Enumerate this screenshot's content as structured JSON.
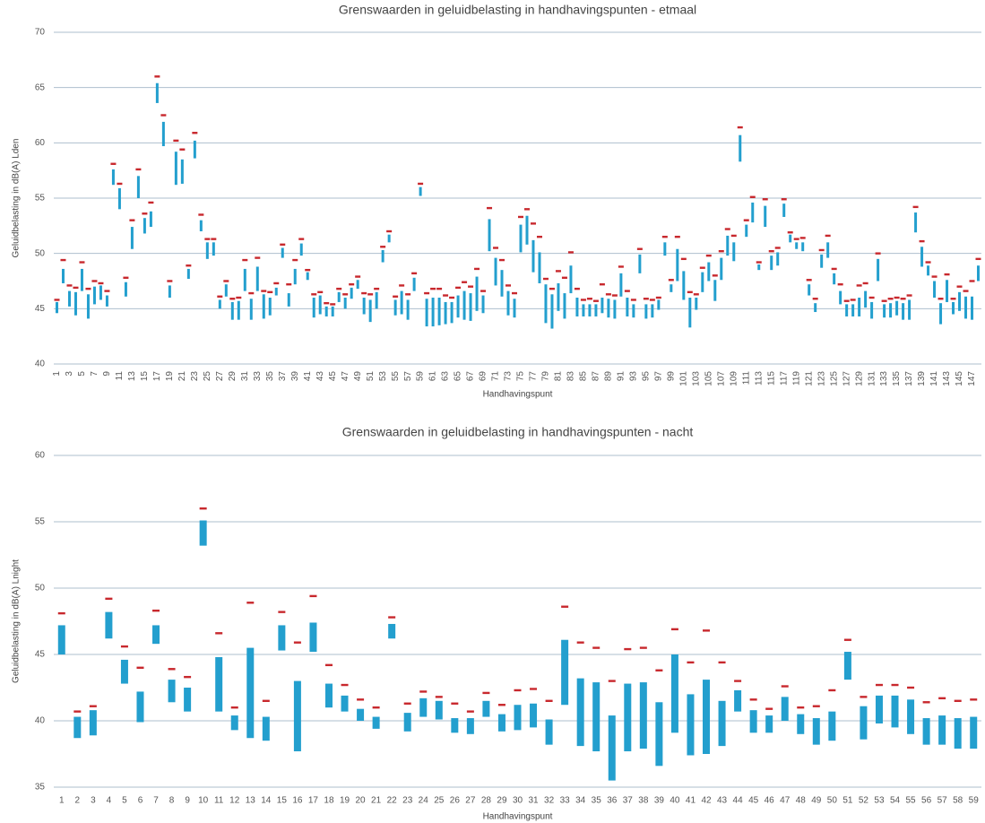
{
  "chart_data": [
    {
      "type": "range",
      "title": "Grenswaarden in geluidbelasting in handhavingspunten - etmaal",
      "x_label": "Handhavingspunt",
      "y_label": "Geluidbelasting in dB(A) Lden",
      "ylim": [
        40,
        70
      ],
      "yticks": [
        40,
        45,
        50,
        55,
        60,
        65,
        70
      ],
      "grid": true,
      "bar_color": "#239fce",
      "limit_color": "#c8282d",
      "categories": [
        1,
        null,
        3,
        null,
        5,
        null,
        7,
        null,
        9,
        null,
        11,
        null,
        13,
        null,
        15,
        null,
        17,
        null,
        19,
        null,
        21,
        null,
        23,
        null,
        25,
        null,
        27,
        null,
        29,
        null,
        31,
        null,
        33,
        null,
        35,
        null,
        37,
        null,
        39,
        null,
        41,
        null,
        43,
        null,
        45,
        null,
        47,
        null,
        49,
        null,
        51,
        null,
        53,
        null,
        55,
        null,
        57,
        null,
        59,
        null,
        61,
        null,
        63,
        null,
        65,
        null,
        67,
        null,
        69,
        null,
        71,
        null,
        73,
        null,
        75,
        null,
        77,
        null,
        79,
        null,
        81,
        null,
        83,
        null,
        85,
        null,
        87,
        null,
        89,
        null,
        91,
        null,
        93,
        null,
        95,
        null,
        97,
        null,
        99,
        null,
        101,
        null,
        103,
        null,
        105,
        null,
        107,
        null,
        109,
        null,
        111,
        null,
        113,
        null,
        115,
        null,
        117,
        null,
        119,
        null,
        121,
        null,
        123,
        null,
        125,
        null,
        127,
        null,
        129,
        null,
        131,
        null,
        133,
        null,
        135,
        null,
        137,
        null,
        139,
        null,
        141,
        null,
        143,
        null,
        145,
        null,
        147,
        null
      ],
      "limits": [
        45.8,
        49.4,
        47.1,
        46.9,
        49.2,
        46.8,
        47.5,
        47.3,
        46.6,
        58.1,
        56.3,
        47.8,
        53.0,
        57.6,
        53.6,
        54.6,
        66.0,
        62.5,
        47.5,
        60.2,
        59.4,
        48.9,
        60.9,
        53.5,
        51.3,
        51.3,
        46.1,
        47.5,
        45.9,
        46.0,
        49.4,
        46.4,
        49.6,
        46.6,
        46.5,
        47.3,
        50.8,
        47.2,
        49.4,
        51.3,
        48.5,
        46.3,
        46.5,
        45.5,
        45.4,
        46.8,
        46.3,
        47.2,
        47.9,
        46.4,
        46.3,
        46.8,
        50.6,
        52.0,
        46.1,
        47.1,
        46.3,
        48.2,
        56.3,
        46.4,
        46.8,
        46.8,
        46.2,
        46.0,
        46.9,
        47.4,
        47.0,
        48.6,
        46.6,
        54.1,
        50.5,
        49.4,
        47.1,
        46.4,
        53.3,
        54.0,
        52.7,
        51.5,
        47.7,
        46.8,
        48.4,
        47.8,
        50.1,
        46.8,
        45.8,
        45.9,
        45.7,
        47.2,
        46.3,
        46.2,
        48.8,
        46.6,
        45.8,
        50.4,
        45.9,
        45.8,
        46.0,
        51.5,
        47.6,
        51.5,
        49.5,
        46.5,
        46.3,
        48.7,
        49.8,
        48.0,
        50.2,
        52.2,
        51.6,
        61.4,
        53.0,
        55.1,
        49.2,
        54.9,
        50.2,
        50.5,
        54.9,
        51.9,
        51.3,
        51.4,
        47.6,
        45.9,
        50.3,
        51.6,
        48.6,
        47.2,
        45.7,
        45.8,
        47.1,
        47.3,
        46.0,
        50.0,
        45.7,
        45.9,
        46.0,
        45.9,
        46.2,
        54.2,
        51.1,
        49.2,
        47.9,
        45.9,
        48.1,
        45.9,
        47.0,
        46.6,
        47.5,
        49.5
      ],
      "highs": [
        45.6,
        48.6,
        46.6,
        46.5,
        48.6,
        46.3,
        47.0,
        47.1,
        46.2,
        57.6,
        55.9,
        47.4,
        52.4,
        57.0,
        53.2,
        53.8,
        65.4,
        61.9,
        47.1,
        59.2,
        58.5,
        48.6,
        60.2,
        53.0,
        51.0,
        51.0,
        45.8,
        47.2,
        45.6,
        45.7,
        48.6,
        45.9,
        48.8,
        46.3,
        46.0,
        46.9,
        50.5,
        46.4,
        48.6,
        50.9,
        48.3,
        46.0,
        46.2,
        45.2,
        45.2,
        46.5,
        46.0,
        46.9,
        47.6,
        46.0,
        45.8,
        46.5,
        50.3,
        51.7,
        45.8,
        46.6,
        45.8,
        47.8,
        56.0,
        45.9,
        46.0,
        46.0,
        45.6,
        45.6,
        46.2,
        46.6,
        46.4,
        47.9,
        46.2,
        53.1,
        49.6,
        48.5,
        46.6,
        45.9,
        52.6,
        53.4,
        51.2,
        50.1,
        47.2,
        46.3,
        47.3,
        46.4,
        48.9,
        46.0,
        45.4,
        45.4,
        45.4,
        46.0,
        45.9,
        45.8,
        48.2,
        46.0,
        45.4,
        49.9,
        45.4,
        45.4,
        45.8,
        51.0,
        47.2,
        50.4,
        48.4,
        46.0,
        46.0,
        48.3,
        49.2,
        47.6,
        49.6,
        51.6,
        51.0,
        60.7,
        52.6,
        54.6,
        49.0,
        54.3,
        49.8,
        50.1,
        54.5,
        51.7,
        51.0,
        51.0,
        47.2,
        45.5,
        49.9,
        51.0,
        48.2,
        46.6,
        45.4,
        45.4,
        46.0,
        46.6,
        45.6,
        49.5,
        45.4,
        45.5,
        45.7,
        45.5,
        45.8,
        53.7,
        50.6,
        48.9,
        47.5,
        45.5,
        47.6,
        45.6,
        46.5,
        46.1,
        46.1,
        48.9
      ],
      "lows": [
        44.6,
        47.3,
        45.2,
        44.4,
        46.6,
        44.1,
        45.4,
        45.8,
        45.2,
        56.2,
        54.0,
        46.1,
        50.4,
        55.0,
        51.8,
        52.4,
        63.6,
        59.7,
        46.0,
        56.2,
        56.3,
        47.7,
        58.6,
        52.0,
        49.5,
        49.8,
        45.0,
        46.1,
        44.0,
        44.0,
        46.6,
        44.0,
        46.6,
        44.1,
        44.4,
        46.2,
        49.6,
        45.2,
        47.2,
        49.8,
        47.6,
        44.2,
        44.5,
        44.3,
        44.3,
        45.6,
        45.0,
        45.9,
        46.8,
        44.5,
        43.8,
        45.0,
        49.2,
        51.0,
        44.4,
        44.5,
        44.0,
        46.6,
        55.2,
        43.4,
        43.4,
        43.5,
        43.6,
        43.7,
        44.2,
        44.0,
        43.9,
        44.8,
        44.6,
        50.2,
        47.1,
        46.1,
        44.4,
        44.2,
        50.1,
        50.8,
        48.3,
        47.3,
        43.7,
        43.2,
        44.8,
        44.1,
        46.4,
        44.3,
        44.3,
        44.3,
        44.3,
        44.6,
        44.2,
        44.1,
        46.1,
        44.3,
        44.2,
        48.2,
        44.1,
        44.2,
        44.9,
        49.8,
        46.5,
        47.5,
        45.8,
        43.3,
        44.9,
        46.5,
        47.5,
        45.7,
        47.6,
        49.8,
        49.3,
        58.3,
        51.5,
        52.8,
        48.5,
        52.4,
        48.5,
        48.9,
        53.3,
        51.0,
        50.4,
        50.2,
        46.2,
        44.7,
        48.7,
        49.6,
        47.2,
        45.4,
        44.3,
        44.3,
        44.3,
        45.1,
        44.1,
        47.5,
        44.2,
        44.2,
        44.4,
        44.0,
        44.0,
        51.9,
        48.8,
        48.0,
        46.0,
        43.6,
        45.6,
        44.5,
        44.8,
        44.1,
        44.0,
        47.5
      ]
    },
    {
      "type": "range",
      "title": "Grenswaarden in geluidbelasting in handhavingspunten - nacht",
      "x_label": "Handhavingspunt",
      "y_label": "Geluidbelasting in dB(A) Lnight",
      "ylim": [
        35,
        60
      ],
      "yticks": [
        35,
        40,
        45,
        50,
        55,
        60
      ],
      "grid": true,
      "bar_color": "#239fce",
      "limit_color": "#c8282d",
      "categories": [
        1,
        2,
        3,
        4,
        5,
        6,
        7,
        8,
        9,
        10,
        11,
        12,
        13,
        14,
        15,
        16,
        17,
        18,
        19,
        20,
        21,
        22,
        23,
        24,
        25,
        26,
        27,
        28,
        29,
        30,
        31,
        32,
        33,
        34,
        35,
        36,
        37,
        38,
        39,
        40,
        41,
        42,
        43,
        44,
        45,
        46,
        47,
        48,
        49,
        50,
        51,
        52,
        53,
        54,
        55,
        56,
        57,
        58,
        59
      ],
      "limits": [
        48.1,
        40.7,
        41.1,
        49.2,
        45.6,
        44.0,
        48.3,
        43.9,
        43.3,
        56.0,
        46.6,
        41.0,
        48.9,
        41.5,
        48.2,
        45.9,
        49.4,
        44.2,
        42.7,
        41.6,
        41.0,
        47.8,
        41.3,
        42.2,
        41.8,
        41.3,
        40.7,
        42.1,
        41.2,
        42.3,
        42.4,
        41.5,
        48.6,
        45.9,
        45.5,
        43.0,
        45.4,
        45.5,
        43.8,
        46.9,
        44.4,
        46.8,
        44.4,
        43.0,
        41.6,
        40.9,
        42.6,
        41.0,
        41.1,
        42.3,
        46.1,
        41.8,
        42.7,
        42.7,
        42.5,
        41.4,
        41.7,
        41.5,
        41.6
      ],
      "highs": [
        47.2,
        40.3,
        40.8,
        48.2,
        44.6,
        42.2,
        47.2,
        43.1,
        42.5,
        55.1,
        44.8,
        40.4,
        45.5,
        40.3,
        47.2,
        43.0,
        47.4,
        42.8,
        41.9,
        40.9,
        40.3,
        47.3,
        40.6,
        41.7,
        41.5,
        40.2,
        40.2,
        41.5,
        40.5,
        41.2,
        41.3,
        40.1,
        46.1,
        43.2,
        42.9,
        40.4,
        42.8,
        42.9,
        41.4,
        45.0,
        42.0,
        43.1,
        41.5,
        42.3,
        40.8,
        40.4,
        41.8,
        40.5,
        40.2,
        40.7,
        45.2,
        41.1,
        41.9,
        41.9,
        41.6,
        40.2,
        40.4,
        40.2,
        40.3
      ],
      "lows": [
        45.0,
        38.7,
        38.9,
        46.2,
        42.8,
        39.9,
        45.8,
        41.4,
        40.7,
        53.2,
        40.7,
        39.3,
        38.7,
        38.5,
        45.3,
        37.7,
        45.2,
        41.0,
        40.7,
        40.0,
        39.4,
        46.2,
        39.2,
        40.3,
        40.1,
        39.1,
        39.0,
        40.3,
        39.2,
        39.3,
        39.5,
        38.2,
        41.2,
        38.1,
        37.7,
        35.5,
        37.7,
        37.9,
        36.6,
        39.1,
        37.4,
        37.5,
        38.1,
        40.7,
        39.1,
        39.1,
        40.0,
        39.0,
        38.2,
        38.5,
        43.1,
        38.6,
        39.8,
        39.5,
        39.0,
        38.2,
        38.2,
        37.9,
        37.9
      ]
    }
  ]
}
